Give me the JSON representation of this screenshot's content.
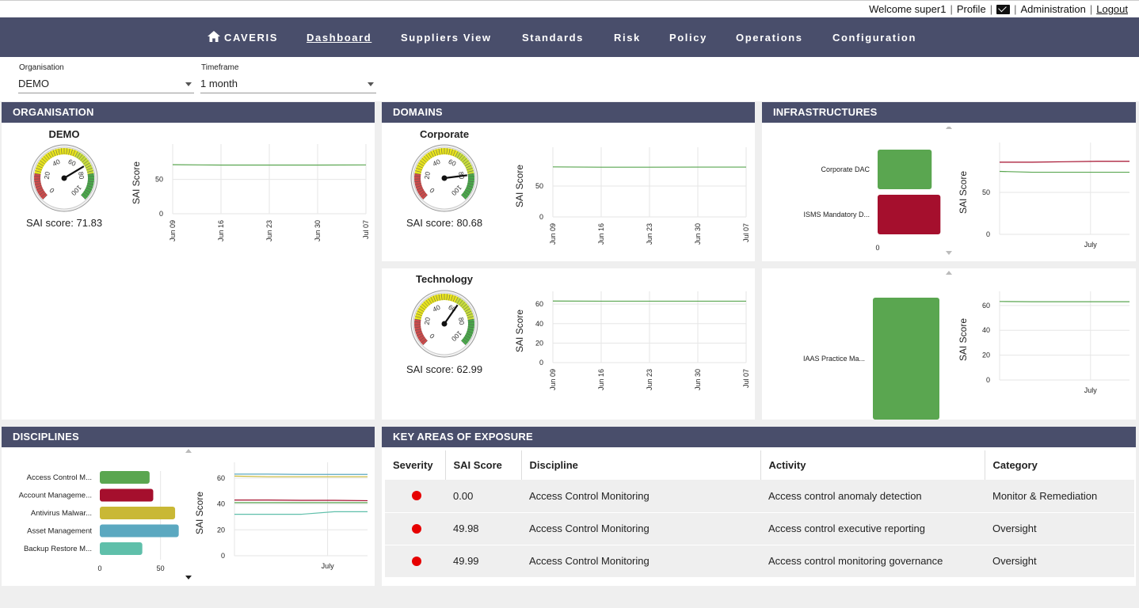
{
  "topbar": {
    "welcome": "Welcome super1",
    "profile": "Profile",
    "administration": "Administration",
    "logout": "Logout"
  },
  "nav": {
    "brand": "CAVERIS",
    "items": [
      "Dashboard",
      "Suppliers View",
      "Standards",
      "Risk",
      "Policy",
      "Operations",
      "Configuration"
    ],
    "active": "Dashboard"
  },
  "filters": {
    "organisation_label": "Organisation",
    "organisation_value": "DEMO",
    "timeframe_label": "Timeframe",
    "timeframe_value": "1 month"
  },
  "panels": {
    "organisation": "ORGANISATION",
    "domains": "DOMAINS",
    "infrastructures": "INFRASTRUCTURES",
    "disciplines": "DISCIPLINES",
    "key_areas": "KEY AREAS OF EXPOSURE"
  },
  "gauges": [
    {
      "title": "DEMO",
      "score_text": "SAI score: 71.83",
      "value": 71.83
    },
    {
      "title": "Corporate",
      "score_text": "SAI score: 80.68",
      "value": 80.68
    },
    {
      "title": "Technology",
      "score_text": "SAI score: 62.99",
      "value": 62.99
    }
  ],
  "chart_data": [
    {
      "type": "line",
      "name": "organisation-demo-trend",
      "ylabel": "SAI Score",
      "yticks": [
        0,
        50
      ],
      "ylim": [
        0,
        90
      ],
      "xticks": [
        "Jun 09",
        "Jun 16",
        "Jun 23",
        "Jun 30",
        "Jul 07"
      ],
      "series": [
        {
          "color": "#5aa650",
          "values": [
            71.5,
            71.0,
            71.0,
            71.0,
            71.2
          ]
        }
      ]
    },
    {
      "type": "line",
      "name": "domain-corporate-trend",
      "ylabel": "SAI Score",
      "yticks": [
        0,
        50
      ],
      "ylim": [
        0,
        100
      ],
      "xticks": [
        "Jun 09",
        "Jun 16",
        "Jun 23",
        "Jun 30",
        "Jul 07"
      ],
      "series": [
        {
          "color": "#5aa650",
          "values": [
            81,
            80.5,
            80.5,
            80.7,
            80.7
          ]
        }
      ]
    },
    {
      "type": "line",
      "name": "domain-technology-trend",
      "ylabel": "SAI Score",
      "yticks": [
        0,
        20,
        40,
        60
      ],
      "ylim": [
        0,
        65
      ],
      "xticks": [
        "Jun 09",
        "Jun 16",
        "Jun 23",
        "Jun 30",
        "Jul 07"
      ],
      "series": [
        {
          "color": "#5aa650",
          "values": [
            63.2,
            63.0,
            63.0,
            63.0,
            63.0
          ]
        }
      ]
    },
    {
      "type": "bar",
      "name": "infrastructures-corporate-bars",
      "orientation": "horizontal",
      "categories": [
        "Corporate DAC",
        "ISMS Mandatory D..."
      ],
      "values": [
        74,
        86
      ],
      "colors": [
        "#5aa650",
        "#a50f2d"
      ],
      "xticks": [
        0
      ]
    },
    {
      "type": "line",
      "name": "infrastructures-corporate-trend",
      "ylabel": "SAI Score",
      "yticks": [
        0,
        50
      ],
      "ylim": [
        0,
        100
      ],
      "xticks": [
        "July"
      ],
      "series": [
        {
          "color": "#a50f2d",
          "values": [
            86,
            86,
            86.5,
            87,
            87
          ]
        },
        {
          "color": "#5aa650",
          "values": [
            75,
            74,
            74,
            74,
            74
          ]
        }
      ]
    },
    {
      "type": "bar",
      "name": "infrastructures-technology-bars",
      "orientation": "horizontal",
      "categories": [
        "IAAS Practice Ma..."
      ],
      "values": [
        63
      ],
      "colors": [
        "#5aa650"
      ]
    },
    {
      "type": "line",
      "name": "infrastructures-technology-trend",
      "ylabel": "SAI Score",
      "yticks": [
        0,
        20,
        40,
        60
      ],
      "ylim": [
        0,
        65
      ],
      "xticks": [
        "July"
      ],
      "series": [
        {
          "color": "#5aa650",
          "values": [
            63.2,
            63,
            63,
            63,
            63
          ]
        }
      ]
    },
    {
      "type": "bar",
      "name": "disciplines-bars",
      "orientation": "horizontal",
      "categories": [
        "Access Control M...",
        "Account Manageme...",
        "Antivirus Malwar...",
        "Asset Management",
        "Backup Restore M..."
      ],
      "values": [
        41,
        44,
        62,
        65,
        35
      ],
      "colors": [
        "#5aa650",
        "#a50f2d",
        "#c9b835",
        "#5ba8c0",
        "#5fbfaa"
      ],
      "xticks": [
        0,
        50
      ]
    },
    {
      "type": "line",
      "name": "disciplines-trend",
      "ylabel": "SAI Score",
      "yticks": [
        0,
        20,
        40,
        60
      ],
      "ylim": [
        0,
        66
      ],
      "xticks": [
        "July"
      ],
      "series": [
        {
          "color": "#5ba8c0",
          "values": [
            63,
            63,
            62.8,
            62.8,
            62.8
          ]
        },
        {
          "color": "#c9b835",
          "values": [
            61.5,
            61,
            61,
            61,
            61
          ]
        },
        {
          "color": "#a50f2d",
          "values": [
            43,
            43,
            42.8,
            42.8,
            42.5
          ]
        },
        {
          "color": "#5aa650",
          "values": [
            41,
            41,
            41,
            41,
            41
          ]
        },
        {
          "color": "#5fbfaa",
          "values": [
            32,
            32,
            32,
            34,
            34
          ]
        }
      ]
    }
  ],
  "kae": {
    "headers": [
      "Severity",
      "SAI Score",
      "Discipline",
      "Activity",
      "Category"
    ],
    "rows": [
      {
        "severity": "red",
        "score": "0.00",
        "discipline": "Access Control Monitoring",
        "activity": "Access control anomaly detection",
        "category": "Monitor & Remediation"
      },
      {
        "severity": "red",
        "score": "49.98",
        "discipline": "Access Control Monitoring",
        "activity": "Access control executive reporting",
        "category": "Oversight"
      },
      {
        "severity": "red",
        "score": "49.99",
        "discipline": "Access Control Monitoring",
        "activity": "Access control monitoring governance",
        "category": "Oversight"
      }
    ]
  }
}
